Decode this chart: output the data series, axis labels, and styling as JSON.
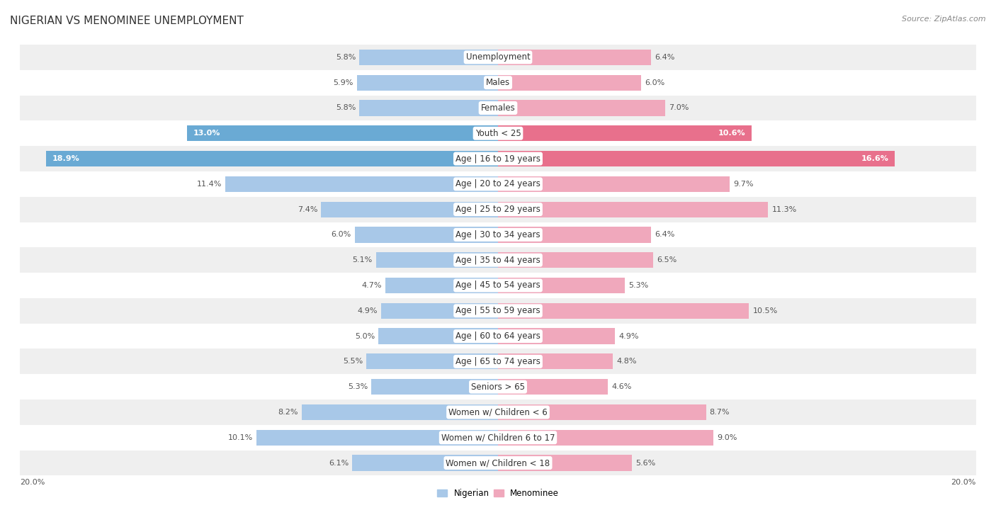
{
  "title": "NIGERIAN VS MENOMINEE UNEMPLOYMENT",
  "source": "Source: ZipAtlas.com",
  "categories": [
    "Unemployment",
    "Males",
    "Females",
    "Youth < 25",
    "Age | 16 to 19 years",
    "Age | 20 to 24 years",
    "Age | 25 to 29 years",
    "Age | 30 to 34 years",
    "Age | 35 to 44 years",
    "Age | 45 to 54 years",
    "Age | 55 to 59 years",
    "Age | 60 to 64 years",
    "Age | 65 to 74 years",
    "Seniors > 65",
    "Women w/ Children < 6",
    "Women w/ Children 6 to 17",
    "Women w/ Children < 18"
  ],
  "nigerian": [
    5.8,
    5.9,
    5.8,
    13.0,
    18.9,
    11.4,
    7.4,
    6.0,
    5.1,
    4.7,
    4.9,
    5.0,
    5.5,
    5.3,
    8.2,
    10.1,
    6.1
  ],
  "menominee": [
    6.4,
    6.0,
    7.0,
    10.6,
    16.6,
    9.7,
    11.3,
    6.4,
    6.5,
    5.3,
    10.5,
    4.9,
    4.8,
    4.6,
    8.7,
    9.0,
    5.6
  ],
  "nigerian_color": "#a8c8e8",
  "menominee_color": "#f0a8bc",
  "nigerian_highlight_color": "#6aaad4",
  "menominee_highlight_color": "#e8708c",
  "highlight_rows": [
    3,
    4
  ],
  "background_row_light": "#efefef",
  "background_row_white": "#ffffff",
  "bar_height": 0.62,
  "xlim": 20.0,
  "legend_nigerian": "Nigerian",
  "legend_menominee": "Menominee",
  "title_fontsize": 11,
  "label_fontsize": 8.5,
  "value_fontsize": 8,
  "source_fontsize": 8
}
